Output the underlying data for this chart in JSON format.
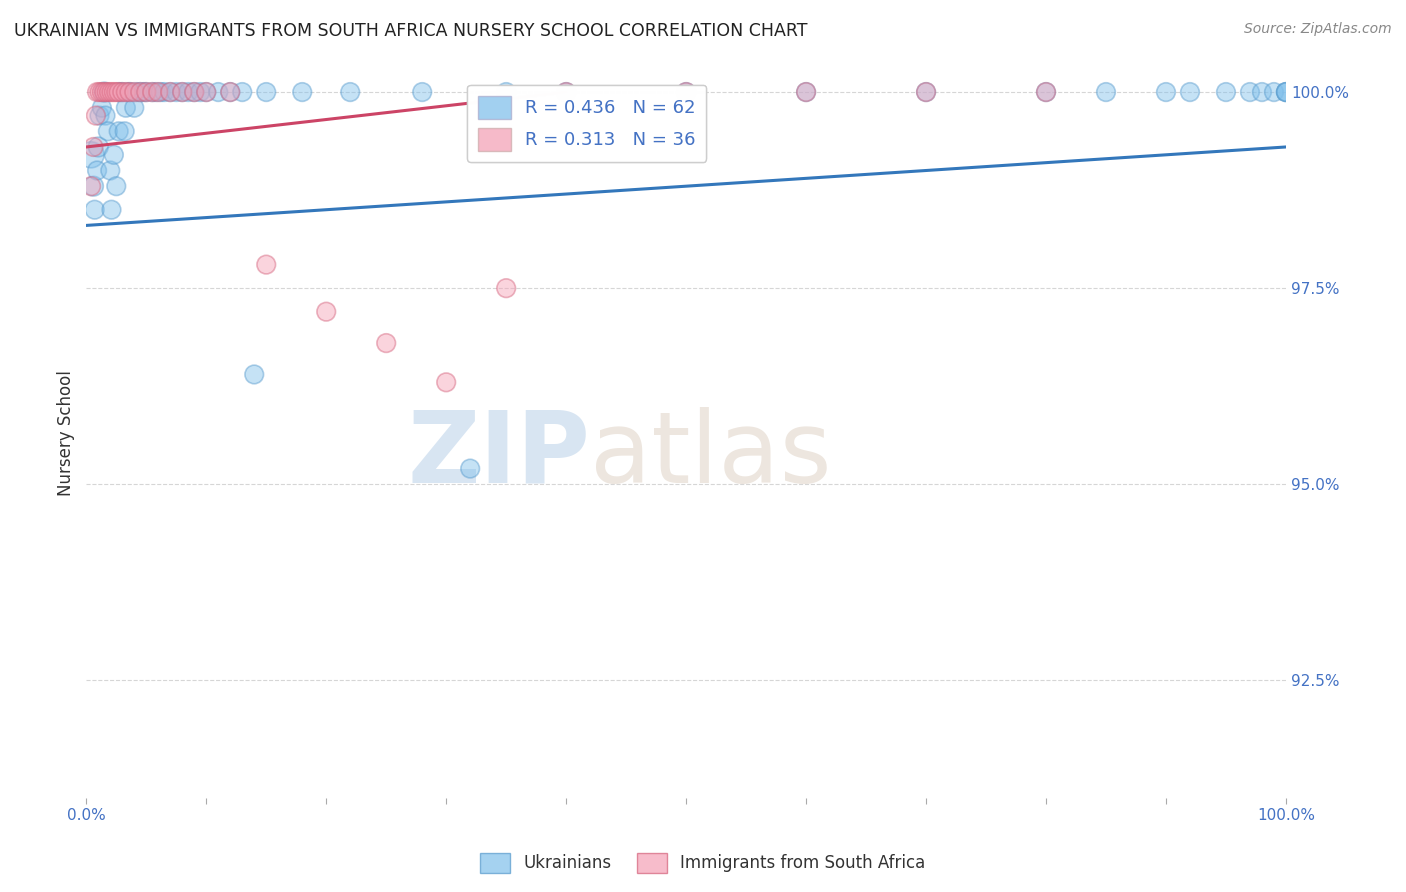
{
  "title": "UKRAINIAN VS IMMIGRANTS FROM SOUTH AFRICA NURSERY SCHOOL CORRELATION CHART",
  "source": "Source: ZipAtlas.com",
  "ylabel": "Nursery School",
  "xlim": [
    0.0,
    1.0
  ],
  "ylim": [
    0.91,
    1.003
  ],
  "yticks": [
    0.925,
    0.95,
    0.975,
    1.0
  ],
  "ytick_labels": [
    "92.5%",
    "95.0%",
    "97.5%",
    "100.0%"
  ],
  "watermark_zip": "ZIP",
  "watermark_atlas": "atlas",
  "legend_R_blue": "0.436",
  "legend_N_blue": "62",
  "legend_R_pink": "0.313",
  "legend_N_pink": "36",
  "blue_color": "#7fbfeb",
  "pink_color": "#f4a0b5",
  "blue_edge_color": "#5599cc",
  "pink_edge_color": "#d4607a",
  "blue_line_color": "#3377bb",
  "pink_line_color": "#cc4466",
  "legend_label_blue": "Ukrainians",
  "legend_label_pink": "Immigrants from South Africa",
  "blue_scatter_x": [
    0.004,
    0.006,
    0.007,
    0.009,
    0.01,
    0.011,
    0.013,
    0.015,
    0.016,
    0.018,
    0.02,
    0.021,
    0.023,
    0.025,
    0.027,
    0.028,
    0.03,
    0.032,
    0.033,
    0.035,
    0.037,
    0.04,
    0.042,
    0.045,
    0.048,
    0.05,
    0.055,
    0.058,
    0.062,
    0.065,
    0.07,
    0.075,
    0.08,
    0.085,
    0.09,
    0.095,
    0.1,
    0.11,
    0.12,
    0.13,
    0.15,
    0.18,
    0.22,
    0.28,
    0.35,
    0.4,
    0.5,
    0.6,
    0.7,
    0.8,
    0.85,
    0.9,
    0.92,
    0.95,
    0.97,
    0.98,
    0.99,
    1.0,
    1.0,
    1.0,
    0.14,
    0.32
  ],
  "blue_scatter_y": [
    0.992,
    0.988,
    0.985,
    0.99,
    0.993,
    0.997,
    0.998,
    1.0,
    0.997,
    0.995,
    0.99,
    0.985,
    0.992,
    0.988,
    0.995,
    1.0,
    1.0,
    0.995,
    0.998,
    1.0,
    1.0,
    0.998,
    1.0,
    1.0,
    1.0,
    1.0,
    1.0,
    1.0,
    1.0,
    1.0,
    1.0,
    1.0,
    1.0,
    1.0,
    1.0,
    1.0,
    1.0,
    1.0,
    1.0,
    1.0,
    1.0,
    1.0,
    1.0,
    1.0,
    1.0,
    1.0,
    1.0,
    1.0,
    1.0,
    1.0,
    1.0,
    1.0,
    1.0,
    1.0,
    1.0,
    1.0,
    1.0,
    1.0,
    1.0,
    1.0,
    0.964,
    0.952
  ],
  "blue_scatter_s": [
    350,
    200,
    180,
    180,
    200,
    180,
    180,
    200,
    180,
    180,
    180,
    180,
    180,
    180,
    180,
    180,
    180,
    180,
    180,
    180,
    180,
    180,
    180,
    180,
    180,
    180,
    180,
    180,
    180,
    180,
    180,
    180,
    180,
    180,
    180,
    180,
    180,
    180,
    180,
    180,
    180,
    180,
    180,
    180,
    180,
    180,
    180,
    180,
    180,
    180,
    180,
    180,
    180,
    180,
    180,
    180,
    180,
    180,
    180,
    180,
    180,
    180
  ],
  "pink_scatter_x": [
    0.004,
    0.006,
    0.008,
    0.009,
    0.011,
    0.013,
    0.015,
    0.017,
    0.019,
    0.021,
    0.023,
    0.025,
    0.027,
    0.03,
    0.033,
    0.036,
    0.04,
    0.045,
    0.05,
    0.055,
    0.06,
    0.07,
    0.08,
    0.09,
    0.1,
    0.12,
    0.15,
    0.2,
    0.25,
    0.3,
    0.35,
    0.4,
    0.5,
    0.6,
    0.7,
    0.8
  ],
  "pink_scatter_y": [
    0.988,
    0.993,
    0.997,
    1.0,
    1.0,
    1.0,
    1.0,
    1.0,
    1.0,
    1.0,
    1.0,
    1.0,
    1.0,
    1.0,
    1.0,
    1.0,
    1.0,
    1.0,
    1.0,
    1.0,
    1.0,
    1.0,
    1.0,
    1.0,
    1.0,
    1.0,
    0.978,
    0.972,
    0.968,
    0.963,
    0.975,
    1.0,
    1.0,
    1.0,
    1.0,
    1.0
  ],
  "pink_scatter_s": [
    180,
    180,
    180,
    180,
    180,
    180,
    180,
    180,
    180,
    180,
    180,
    180,
    180,
    180,
    180,
    180,
    180,
    180,
    180,
    180,
    180,
    180,
    180,
    180,
    180,
    180,
    180,
    180,
    180,
    180,
    180,
    180,
    180,
    180,
    180,
    180
  ],
  "blue_trend_x": [
    0.0,
    1.0
  ],
  "blue_trend_y": [
    0.983,
    0.993
  ],
  "pink_trend_x": [
    0.0,
    0.4
  ],
  "pink_trend_y": [
    0.993,
    1.0
  ],
  "background_color": "#ffffff",
  "grid_color": "#cccccc",
  "title_color": "#222222",
  "axis_label_color": "#333333",
  "ytick_color": "#4472c4",
  "xtick_color": "#4472c4",
  "source_color": "#888888",
  "watermark_color": "#c8dff5",
  "legend_box_color": "#e8e8f0"
}
